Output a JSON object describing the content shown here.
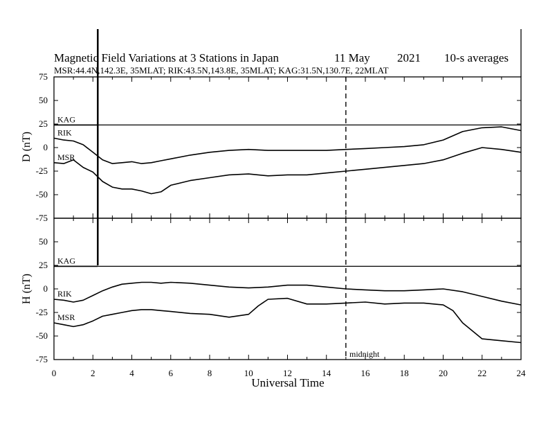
{
  "header": {
    "title": "Magnetic Field Variations at 3 Stations in Japan",
    "date": "11 May",
    "year": "2021",
    "averaging": "10-s averages",
    "stations_line": "MSR:44.4N,142.3E, 35MLAT;  RIK:43.5N,143.8E, 35MLAT;  KAG:31.5N,130.7E, 22MLAT"
  },
  "chart_data": [
    {
      "type": "line",
      "ylabel": "D (nT)",
      "ylim": [
        -75,
        75
      ],
      "yticks": [
        -75,
        -50,
        -25,
        0,
        25,
        50,
        75
      ],
      "series": [
        {
          "name": "KAG",
          "x": [
            0,
            2.25
          ],
          "y": [
            24,
            24
          ]
        },
        {
          "name": "RIK",
          "x": [
            0,
            0.5,
            1,
            1.5,
            2,
            2.5,
            3,
            3.5,
            4,
            4.5,
            5,
            5.5,
            6,
            7,
            8,
            9,
            10,
            11,
            12,
            13,
            14,
            15,
            16,
            17,
            18,
            19,
            20,
            21,
            22,
            23,
            24
          ],
          "y": [
            10,
            8,
            7,
            3,
            -5,
            -13,
            -17,
            -16,
            -15,
            -17,
            -16,
            -14,
            -12,
            -8,
            -5,
            -3,
            -2,
            -3,
            -3,
            -3,
            -3,
            -2,
            -1,
            0,
            1,
            3,
            8,
            17,
            21,
            22,
            18
          ]
        },
        {
          "name": "MSR",
          "x": [
            0,
            0.5,
            1,
            1.5,
            2,
            2.5,
            3,
            3.5,
            4,
            4.5,
            5,
            5.5,
            6,
            7,
            8,
            9,
            10,
            11,
            12,
            13,
            14,
            15,
            16,
            17,
            18,
            19,
            20,
            21,
            22,
            23,
            24
          ],
          "y": [
            -16,
            -17,
            -13,
            -21,
            -26,
            -36,
            -42,
            -44,
            -44,
            -46,
            -49,
            -47,
            -40,
            -35,
            -32,
            -29,
            -28,
            -30,
            -29,
            -29,
            -27,
            -25,
            -23,
            -21,
            -19,
            -17,
            -13,
            -6,
            0,
            -2,
            -5
          ]
        }
      ]
    },
    {
      "type": "line",
      "xlabel": "Universal Time",
      "ylabel": "H (nT)",
      "xlim": [
        0,
        24
      ],
      "xticks": [
        0,
        2,
        4,
        6,
        8,
        10,
        12,
        14,
        16,
        18,
        20,
        22,
        24
      ],
      "ylim": [
        -75,
        75
      ],
      "yticks": [
        -75,
        -50,
        -25,
        0,
        25,
        50,
        75
      ],
      "series": [
        {
          "name": "KAG",
          "x": [
            0,
            2.25
          ],
          "y": [
            24,
            24
          ]
        },
        {
          "name": "RIK",
          "x": [
            0,
            0.5,
            1,
            1.5,
            2,
            2.5,
            3,
            3.5,
            4,
            4.5,
            5,
            5.5,
            6,
            7,
            8,
            9,
            10,
            11,
            12,
            13,
            14,
            15,
            16,
            17,
            18,
            19,
            20,
            21,
            22,
            23,
            24
          ],
          "y": [
            -11,
            -12,
            -14,
            -12,
            -7,
            -2,
            2,
            5,
            6,
            7,
            7,
            6,
            7,
            6,
            4,
            2,
            1,
            2,
            4,
            4,
            2,
            0,
            -1,
            -2,
            -2,
            -1,
            0,
            -3,
            -8,
            -13,
            -17
          ]
        },
        {
          "name": "MSR",
          "x": [
            0,
            0.5,
            1,
            1.5,
            2,
            2.5,
            3,
            3.5,
            4,
            4.5,
            5,
            5.5,
            6,
            7,
            8,
            9,
            10,
            10.5,
            11,
            12,
            13,
            14,
            15,
            16,
            17,
            18,
            19,
            20,
            20.5,
            21,
            22,
            23,
            24
          ],
          "y": [
            -36,
            -38,
            -40,
            -38,
            -34,
            -29,
            -27,
            -25,
            -23,
            -22,
            -22,
            -23,
            -24,
            -26,
            -27,
            -30,
            -27,
            -18,
            -11,
            -10,
            -16,
            -16,
            -15,
            -14,
            -16,
            -15,
            -15,
            -17,
            -23,
            -36,
            -53,
            -55,
            -57
          ]
        }
      ]
    }
  ],
  "annotations": {
    "midnight_label": "midnight",
    "midnight_time": 15,
    "marker_time": 2.25
  }
}
